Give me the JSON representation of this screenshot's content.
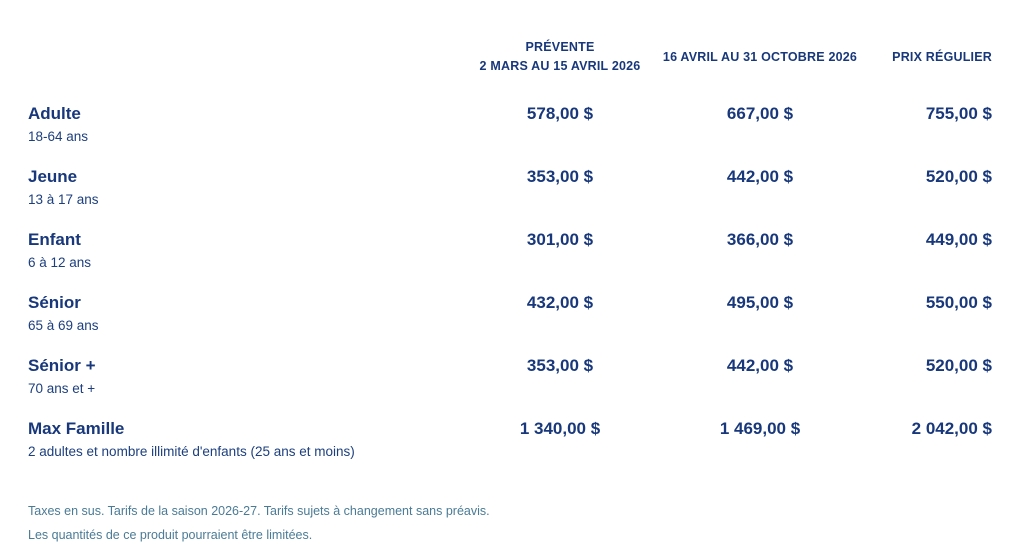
{
  "colors": {
    "primary_navy": "#18387b",
    "footnote_blue": "#4a7b96"
  },
  "table": {
    "columns": [
      {
        "label_line1": "PRÉVENTE",
        "label_line2": "2 MARS AU 15 AVRIL 2026"
      },
      {
        "label": "16 AVRIL AU 31 OCTOBRE 2026"
      },
      {
        "label": "PRIX RÉGULIER"
      }
    ],
    "rows": [
      {
        "category": "Adulte",
        "detail": "18-64 ans",
        "prices": [
          "578,00 $",
          "667,00 $",
          "755,00 $"
        ]
      },
      {
        "category": "Jeune",
        "detail": "13 à 17 ans",
        "prices": [
          "353,00 $",
          "442,00 $",
          "520,00 $"
        ]
      },
      {
        "category": "Enfant",
        "detail": "6 à 12 ans",
        "prices": [
          "301,00 $",
          "366,00 $",
          "449,00 $"
        ]
      },
      {
        "category": "Sénior",
        "detail": "65 à 69 ans",
        "prices": [
          "432,00 $",
          "495,00 $",
          "550,00 $"
        ]
      },
      {
        "category": "Sénior +",
        "detail": "70 ans et +",
        "prices": [
          "353,00 $",
          "442,00 $",
          "520,00 $"
        ]
      },
      {
        "category": "Max Famille",
        "detail": "2 adultes et nombre illimité d'enfants (25 ans et moins)",
        "prices": [
          "1 340,00 $",
          "1 469,00 $",
          "2 042,00 $"
        ]
      }
    ]
  },
  "footnotes": {
    "line1": "Taxes en sus. Tarifs de la saison 2026-27. Tarifs sujets à changement sans préavis.",
    "line2": "Les quantités de ce produit pourraient être limitées."
  }
}
